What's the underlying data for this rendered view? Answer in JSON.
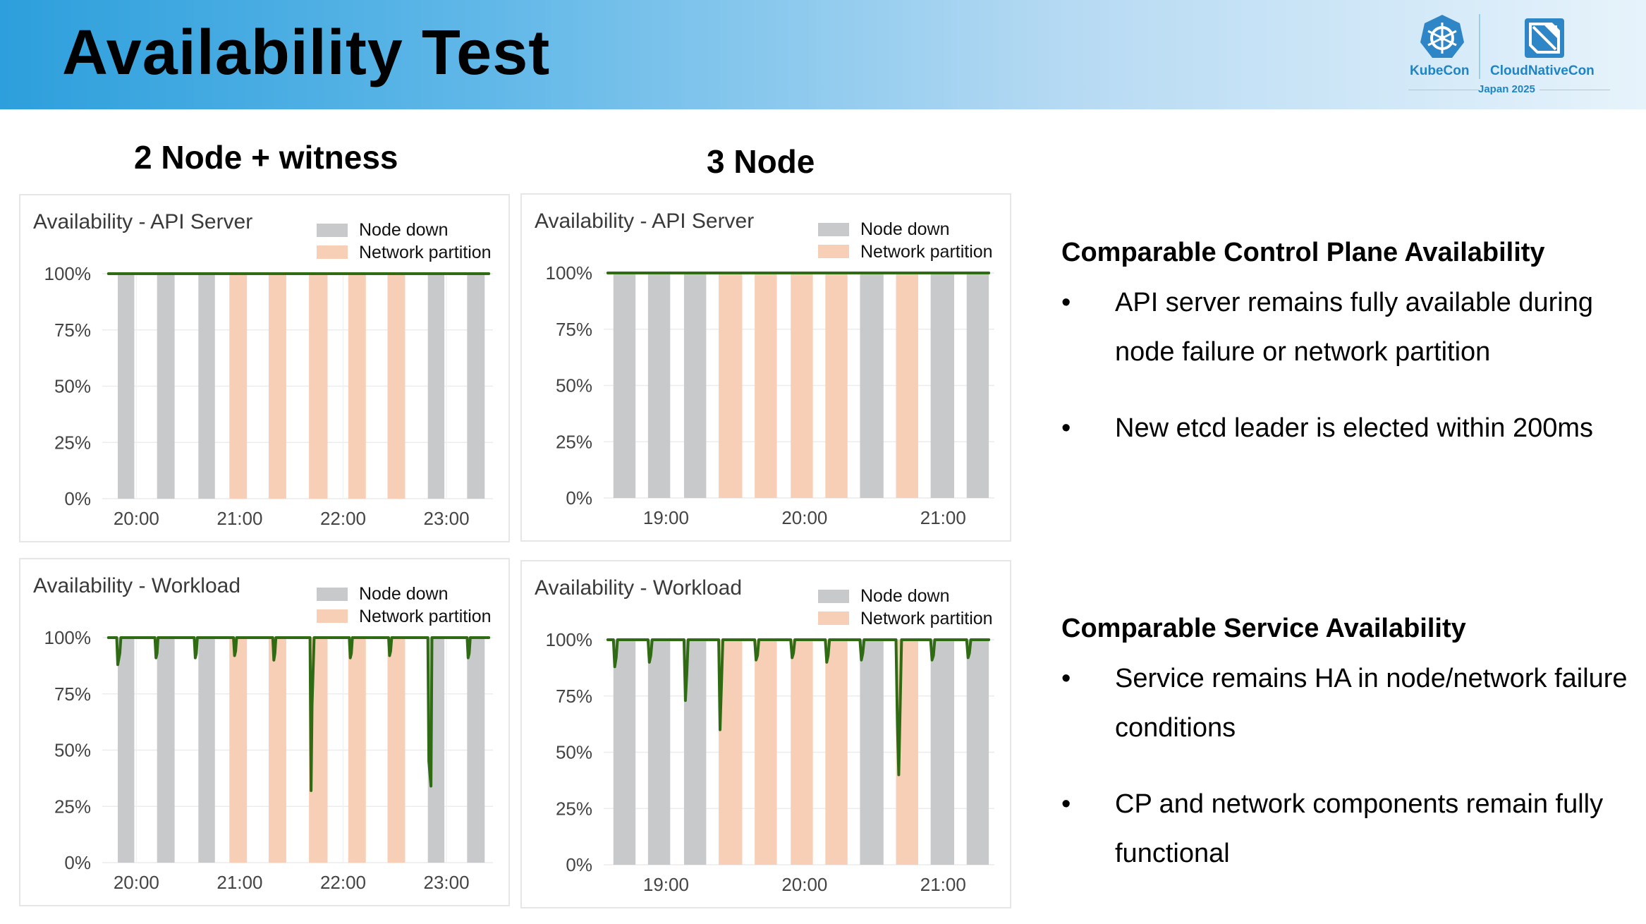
{
  "header": {
    "title": "Availability Test",
    "logo": {
      "left_label": "KubeCon",
      "right_label": "CloudNativeCon",
      "sub_label": "Japan 2025",
      "color": "#1f84c4"
    },
    "gradient": [
      "#2d9fdc",
      "#e7f3fb"
    ]
  },
  "columns": {
    "left_title": "2 Node + witness",
    "right_title": "3 Node"
  },
  "legend": {
    "node_down": "Node down",
    "network_partition": "Network partition",
    "node_down_color": "#c8c9cb",
    "network_partition_color": "#f7cfb6",
    "line_color": "#2f6b12"
  },
  "chart_data": [
    {
      "type": "line",
      "title": "Availability - API Server",
      "ylim": [
        0,
        100
      ],
      "yticks": [
        "0%",
        "25%",
        "50%",
        "75%",
        "100%"
      ],
      "xlim": [
        19.67,
        23.45
      ],
      "xticks": [
        {
          "value": 20,
          "label": "20:00"
        },
        {
          "value": 21,
          "label": "21:00"
        },
        {
          "value": 22,
          "label": "22:00"
        },
        {
          "value": 23,
          "label": "23:00"
        }
      ],
      "grid": true,
      "legend_placement": "top-right",
      "bands": [
        {
          "type": "node_down",
          "start": 19.82,
          "end": 19.98
        },
        {
          "type": "node_down",
          "start": 20.2,
          "end": 20.37
        },
        {
          "type": "node_down",
          "start": 20.6,
          "end": 20.76
        },
        {
          "type": "network_partition",
          "start": 20.9,
          "end": 21.07
        },
        {
          "type": "network_partition",
          "start": 21.28,
          "end": 21.45
        },
        {
          "type": "network_partition",
          "start": 21.67,
          "end": 21.85
        },
        {
          "type": "network_partition",
          "start": 22.05,
          "end": 22.22
        },
        {
          "type": "network_partition",
          "start": 22.43,
          "end": 22.6
        },
        {
          "type": "node_down",
          "start": 22.82,
          "end": 22.98
        },
        {
          "type": "node_down",
          "start": 23.2,
          "end": 23.37
        }
      ],
      "series": [
        {
          "x": [
            19.73,
            23.41
          ],
          "y": [
            100,
            100
          ]
        }
      ]
    },
    {
      "type": "line",
      "title": "Availability - API Server",
      "ylim": [
        0,
        100
      ],
      "yticks": [
        "0%",
        "25%",
        "50%",
        "75%",
        "100%"
      ],
      "xlim": [
        18.55,
        21.37
      ],
      "xticks": [
        {
          "value": 19,
          "label": "19:00"
        },
        {
          "value": 20,
          "label": "20:00"
        },
        {
          "value": 21,
          "label": "21:00"
        }
      ],
      "grid": true,
      "legend_placement": "top-right",
      "bands": [
        {
          "type": "node_down",
          "start": 18.62,
          "end": 18.78
        },
        {
          "type": "node_down",
          "start": 18.87,
          "end": 19.03
        },
        {
          "type": "node_down",
          "start": 19.13,
          "end": 19.29
        },
        {
          "type": "network_partition",
          "start": 19.38,
          "end": 19.55
        },
        {
          "type": "network_partition",
          "start": 19.64,
          "end": 19.8
        },
        {
          "type": "network_partition",
          "start": 19.9,
          "end": 20.06
        },
        {
          "type": "network_partition",
          "start": 20.15,
          "end": 20.31
        },
        {
          "type": "node_down",
          "start": 20.4,
          "end": 20.57
        },
        {
          "type": "network_partition",
          "start": 20.66,
          "end": 20.82
        },
        {
          "type": "node_down",
          "start": 20.91,
          "end": 21.08
        },
        {
          "type": "node_down",
          "start": 21.17,
          "end": 21.33
        }
      ],
      "series": [
        {
          "x": [
            18.58,
            21.33
          ],
          "y": [
            100,
            100
          ]
        }
      ]
    },
    {
      "type": "line",
      "title": "Availability - Workload",
      "ylim": [
        0,
        100
      ],
      "yticks": [
        "0%",
        "25%",
        "50%",
        "75%",
        "100%"
      ],
      "xlim": [
        19.67,
        23.45
      ],
      "xticks": [
        {
          "value": 20,
          "label": "20:00"
        },
        {
          "value": 21,
          "label": "21:00"
        },
        {
          "value": 22,
          "label": "22:00"
        },
        {
          "value": 23,
          "label": "23:00"
        }
      ],
      "grid": true,
      "legend_placement": "top-right",
      "bands": [
        {
          "type": "node_down",
          "start": 19.82,
          "end": 19.98
        },
        {
          "type": "node_down",
          "start": 20.2,
          "end": 20.37
        },
        {
          "type": "node_down",
          "start": 20.6,
          "end": 20.76
        },
        {
          "type": "network_partition",
          "start": 20.9,
          "end": 21.07
        },
        {
          "type": "network_partition",
          "start": 21.28,
          "end": 21.45
        },
        {
          "type": "network_partition",
          "start": 21.67,
          "end": 21.85
        },
        {
          "type": "network_partition",
          "start": 22.05,
          "end": 22.22
        },
        {
          "type": "network_partition",
          "start": 22.43,
          "end": 22.6
        },
        {
          "type": "node_down",
          "start": 22.82,
          "end": 22.98
        },
        {
          "type": "node_down",
          "start": 23.2,
          "end": 23.37
        }
      ],
      "series": [
        {
          "x": [
            19.73,
            19.81,
            19.82,
            19.84,
            19.85,
            20.18,
            20.19,
            20.2,
            20.21,
            20.56,
            20.57,
            20.58,
            20.59,
            20.94,
            20.95,
            20.96,
            20.97,
            21.32,
            21.33,
            21.34,
            21.35,
            21.68,
            21.69,
            21.7,
            21.72,
            22.06,
            22.07,
            22.08,
            22.09,
            22.44,
            22.45,
            22.46,
            22.47,
            22.82,
            22.83,
            22.85,
            22.86,
            23.2,
            23.21,
            23.22,
            23.23,
            23.41
          ],
          "y": [
            100,
            100,
            88,
            93,
            100,
            100,
            91,
            93,
            100,
            100,
            91,
            93,
            100,
            100,
            92,
            94,
            100,
            100,
            90,
            93,
            100,
            100,
            32,
            70,
            100,
            100,
            91,
            93,
            100,
            100,
            92,
            94,
            100,
            100,
            45,
            34,
            100,
            100,
            91,
            93,
            100,
            100
          ]
        }
      ]
    },
    {
      "type": "line",
      "title": "Availability - Workload",
      "ylim": [
        0,
        100
      ],
      "yticks": [
        "0%",
        "25%",
        "50%",
        "75%",
        "100%"
      ],
      "xlim": [
        18.55,
        21.37
      ],
      "xticks": [
        {
          "value": 19,
          "label": "19:00"
        },
        {
          "value": 20,
          "label": "20:00"
        },
        {
          "value": 21,
          "label": "21:00"
        }
      ],
      "grid": true,
      "legend_placement": "top-right",
      "bands": [
        {
          "type": "node_down",
          "start": 18.62,
          "end": 18.78
        },
        {
          "type": "node_down",
          "start": 18.87,
          "end": 19.03
        },
        {
          "type": "node_down",
          "start": 19.13,
          "end": 19.29
        },
        {
          "type": "network_partition",
          "start": 19.38,
          "end": 19.55
        },
        {
          "type": "network_partition",
          "start": 19.64,
          "end": 19.8
        },
        {
          "type": "network_partition",
          "start": 19.9,
          "end": 20.06
        },
        {
          "type": "network_partition",
          "start": 20.15,
          "end": 20.31
        },
        {
          "type": "node_down",
          "start": 20.4,
          "end": 20.57
        },
        {
          "type": "network_partition",
          "start": 20.66,
          "end": 20.82
        },
        {
          "type": "node_down",
          "start": 20.91,
          "end": 21.08
        },
        {
          "type": "node_down",
          "start": 21.17,
          "end": 21.33
        }
      ],
      "series": [
        {
          "x": [
            18.58,
            18.62,
            18.63,
            18.64,
            18.65,
            18.87,
            18.88,
            18.89,
            18.9,
            19.13,
            19.14,
            19.15,
            19.16,
            19.38,
            19.39,
            19.4,
            19.41,
            19.64,
            19.65,
            19.66,
            19.67,
            19.9,
            19.91,
            19.92,
            19.93,
            20.15,
            20.16,
            20.17,
            20.18,
            20.4,
            20.41,
            20.42,
            20.43,
            20.66,
            20.67,
            20.68,
            20.7,
            20.91,
            20.92,
            20.93,
            20.94,
            21.17,
            21.18,
            21.19,
            21.2,
            21.33
          ],
          "y": [
            100,
            100,
            88,
            92,
            100,
            100,
            90,
            93,
            100,
            100,
            73,
            85,
            100,
            100,
            60,
            80,
            100,
            100,
            91,
            93,
            100,
            100,
            92,
            94,
            100,
            100,
            90,
            93,
            100,
            100,
            91,
            94,
            100,
            100,
            62,
            40,
            100,
            100,
            91,
            93,
            100,
            100,
            92,
            94,
            100,
            100
          ]
        }
      ]
    }
  ],
  "bullets": {
    "section1": {
      "title": "Comparable Control Plane Availability",
      "items": [
        "API server remains fully available during node failure or network partition",
        "New etcd leader is elected within 200ms"
      ]
    },
    "section2": {
      "title": "Comparable Service Availability",
      "items": [
        "Service remains HA in node/network failure conditions",
        "CP and network components remain fully functional"
      ]
    },
    "bullet_glyph": "•"
  }
}
